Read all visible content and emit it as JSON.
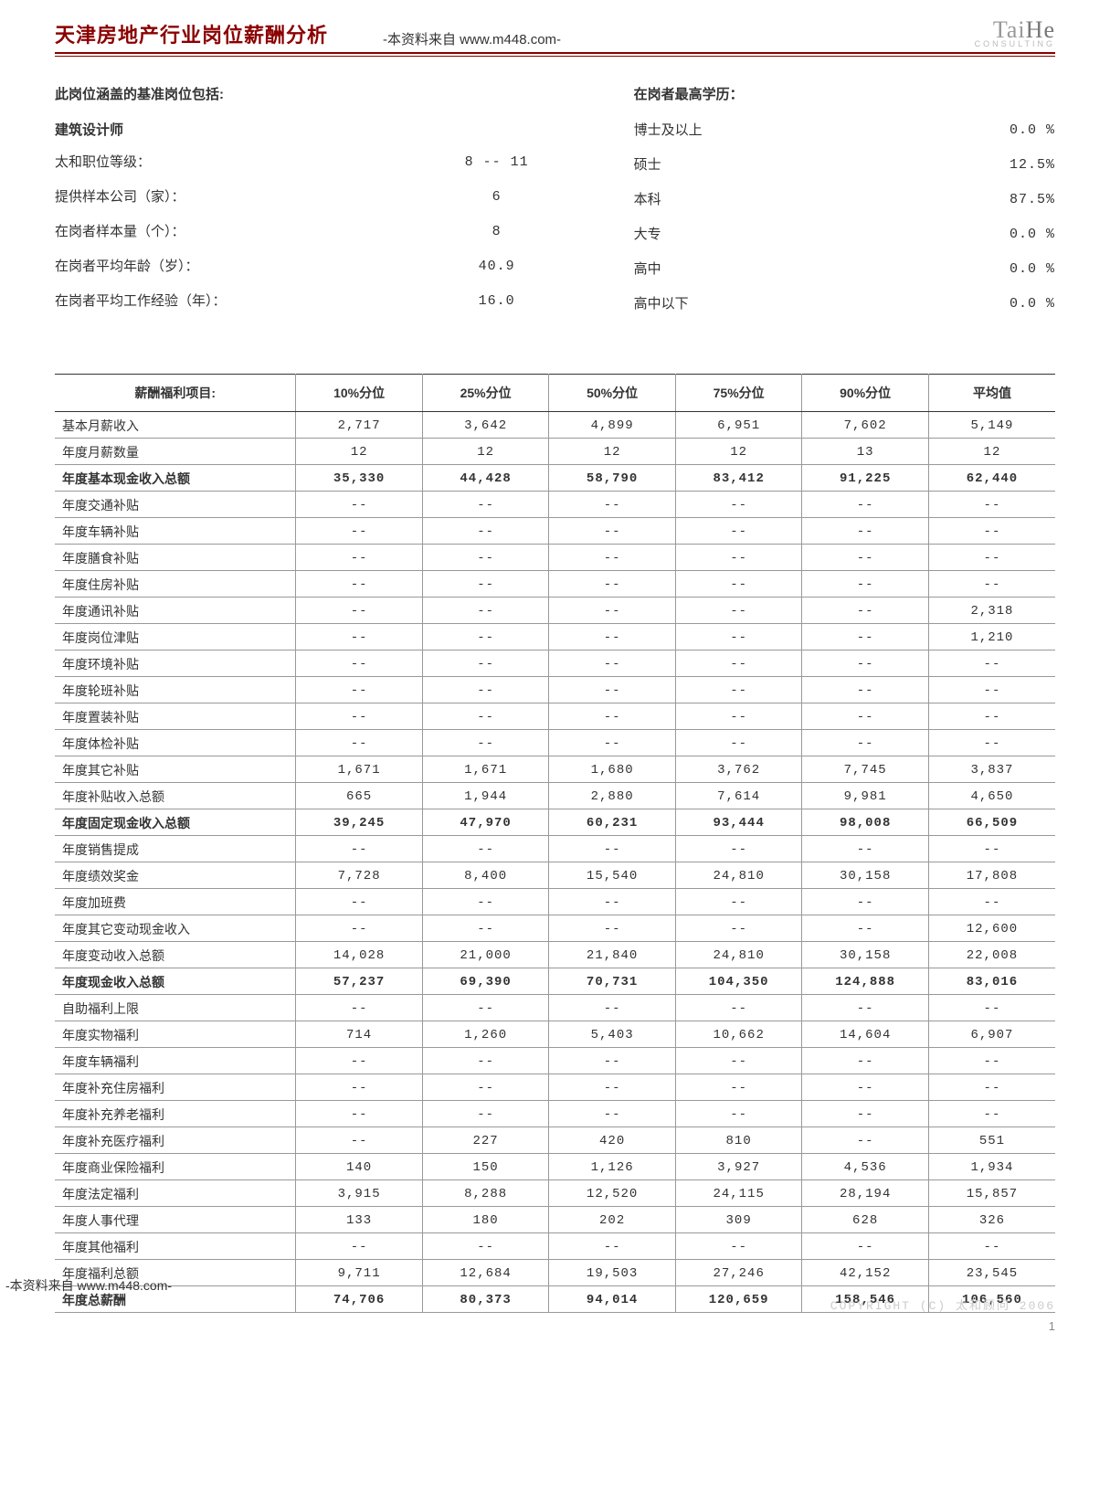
{
  "header": {
    "title": "天津房地产行业岗位薪酬分析",
    "source": "-本资料来自 www.m448.com-",
    "logo_main_a": "Tai",
    "logo_main_b": "He",
    "logo_sub": "CONSULTING"
  },
  "left_info": {
    "heading": "此岗位涵盖的基准岗位包括:",
    "position": "建筑设计师",
    "rows": [
      {
        "label": "太和职位等级：",
        "value": "8  --  11"
      },
      {
        "label": "提供样本公司（家）：",
        "value": "6"
      },
      {
        "label": "在岗者样本量（个）：",
        "value": "8"
      },
      {
        "label": "在岗者平均年龄（岁）：",
        "value": "40.9"
      },
      {
        "label": "在岗者平均工作经验（年）：",
        "value": "16.0"
      }
    ]
  },
  "right_info": {
    "heading": "在岗者最高学历：",
    "rows": [
      {
        "label": "博士及以上",
        "value": "0.0 %"
      },
      {
        "label": "硕士",
        "value": "12.5%"
      },
      {
        "label": "本科",
        "value": "87.5%"
      },
      {
        "label": "大专",
        "value": "0.0 %"
      },
      {
        "label": "高中",
        "value": "0.0 %"
      },
      {
        "label": "高中以下",
        "value": "0.0 %"
      }
    ]
  },
  "table": {
    "headers": [
      "薪酬福利项目:",
      "10%分位",
      "25%分位",
      "50%分位",
      "75%分位",
      "90%分位",
      "平均值"
    ],
    "rows": [
      {
        "label": "基本月薪收入",
        "v": [
          "2,717",
          "3,642",
          "4,899",
          "6,951",
          "7,602",
          "5,149"
        ],
        "bold": false
      },
      {
        "label": "年度月薪数量",
        "v": [
          "12",
          "12",
          "12",
          "12",
          "13",
          "12"
        ],
        "bold": false
      },
      {
        "label": "年度基本现金收入总额",
        "v": [
          "35,330",
          "44,428",
          "58,790",
          "83,412",
          "91,225",
          "62,440"
        ],
        "bold": true
      },
      {
        "label": "年度交通补贴",
        "v": [
          "--",
          "--",
          "--",
          "--",
          "--",
          "--"
        ],
        "bold": false
      },
      {
        "label": "年度车辆补贴",
        "v": [
          "--",
          "--",
          "--",
          "--",
          "--",
          "--"
        ],
        "bold": false
      },
      {
        "label": "年度膳食补贴",
        "v": [
          "--",
          "--",
          "--",
          "--",
          "--",
          "--"
        ],
        "bold": false
      },
      {
        "label": "年度住房补贴",
        "v": [
          "--",
          "--",
          "--",
          "--",
          "--",
          "--"
        ],
        "bold": false
      },
      {
        "label": "年度通讯补贴",
        "v": [
          "--",
          "--",
          "--",
          "--",
          "--",
          "2,318"
        ],
        "bold": false
      },
      {
        "label": "年度岗位津贴",
        "v": [
          "--",
          "--",
          "--",
          "--",
          "--",
          "1,210"
        ],
        "bold": false
      },
      {
        "label": "年度环境补贴",
        "v": [
          "--",
          "--",
          "--",
          "--",
          "--",
          "--"
        ],
        "bold": false
      },
      {
        "label": "年度轮班补贴",
        "v": [
          "--",
          "--",
          "--",
          "--",
          "--",
          "--"
        ],
        "bold": false
      },
      {
        "label": "年度置装补贴",
        "v": [
          "--",
          "--",
          "--",
          "--",
          "--",
          "--"
        ],
        "bold": false
      },
      {
        "label": "年度体检补贴",
        "v": [
          "--",
          "--",
          "--",
          "--",
          "--",
          "--"
        ],
        "bold": false
      },
      {
        "label": "年度其它补贴",
        "v": [
          "1,671",
          "1,671",
          "1,680",
          "3,762",
          "7,745",
          "3,837"
        ],
        "bold": false
      },
      {
        "label": "年度补贴收入总额",
        "v": [
          "665",
          "1,944",
          "2,880",
          "7,614",
          "9,981",
          "4,650"
        ],
        "bold": false
      },
      {
        "label": "年度固定现金收入总额",
        "v": [
          "39,245",
          "47,970",
          "60,231",
          "93,444",
          "98,008",
          "66,509"
        ],
        "bold": true
      },
      {
        "label": "年度销售提成",
        "v": [
          "--",
          "--",
          "--",
          "--",
          "--",
          "--"
        ],
        "bold": false
      },
      {
        "label": "年度绩效奖金",
        "v": [
          "7,728",
          "8,400",
          "15,540",
          "24,810",
          "30,158",
          "17,808"
        ],
        "bold": false
      },
      {
        "label": "年度加班费",
        "v": [
          "--",
          "--",
          "--",
          "--",
          "--",
          "--"
        ],
        "bold": false
      },
      {
        "label": "年度其它变动现金收入",
        "v": [
          "--",
          "--",
          "--",
          "--",
          "--",
          "12,600"
        ],
        "bold": false
      },
      {
        "label": "年度变动收入总额",
        "v": [
          "14,028",
          "21,000",
          "21,840",
          "24,810",
          "30,158",
          "22,008"
        ],
        "bold": false
      },
      {
        "label": "年度现金收入总额",
        "v": [
          "57,237",
          "69,390",
          "70,731",
          "104,350",
          "124,888",
          "83,016"
        ],
        "bold": true
      },
      {
        "label": "自助福利上限",
        "v": [
          "--",
          "--",
          "--",
          "--",
          "--",
          "--"
        ],
        "bold": false
      },
      {
        "label": "年度实物福利",
        "v": [
          "714",
          "1,260",
          "5,403",
          "10,662",
          "14,604",
          "6,907"
        ],
        "bold": false
      },
      {
        "label": "年度车辆福利",
        "v": [
          "--",
          "--",
          "--",
          "--",
          "--",
          "--"
        ],
        "bold": false
      },
      {
        "label": "年度补充住房福利",
        "v": [
          "--",
          "--",
          "--",
          "--",
          "--",
          "--"
        ],
        "bold": false
      },
      {
        "label": "年度补充养老福利",
        "v": [
          "--",
          "--",
          "--",
          "--",
          "--",
          "--"
        ],
        "bold": false
      },
      {
        "label": "年度补充医疗福利",
        "v": [
          "--",
          "227",
          "420",
          "810",
          "--",
          "551"
        ],
        "bold": false
      },
      {
        "label": "年度商业保险福利",
        "v": [
          "140",
          "150",
          "1,126",
          "3,927",
          "4,536",
          "1,934"
        ],
        "bold": false
      },
      {
        "label": "年度法定福利",
        "v": [
          "3,915",
          "8,288",
          "12,520",
          "24,115",
          "28,194",
          "15,857"
        ],
        "bold": false
      },
      {
        "label": "年度人事代理",
        "v": [
          "133",
          "180",
          "202",
          "309",
          "628",
          "326"
        ],
        "bold": false
      },
      {
        "label": "年度其他福利",
        "v": [
          "--",
          "--",
          "--",
          "--",
          "--",
          "--"
        ],
        "bold": false
      },
      {
        "label": "年度福利总额",
        "v": [
          "9,711",
          "12,684",
          "19,503",
          "27,246",
          "42,152",
          "23,545"
        ],
        "bold": false
      },
      {
        "label": "年度总薪酬",
        "v": [
          "74,706",
          "80,373",
          "94,014",
          "120,659",
          "158,546",
          "106,560"
        ],
        "bold": true
      }
    ]
  },
  "footer": {
    "left": "-本资料来自 www.m448.com-",
    "right": "COPYRIGHT (C) 太和顾问 2006",
    "page": "1"
  }
}
